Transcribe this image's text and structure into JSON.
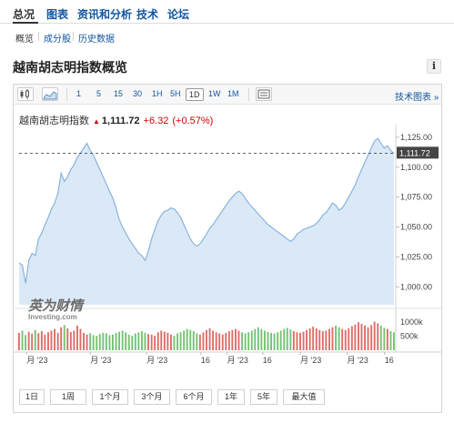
{
  "top_nav": {
    "items": [
      "总况",
      "图表",
      "资讯和分析",
      "技术",
      "论坛"
    ]
  },
  "sub_nav": {
    "items": [
      "概览",
      "成分股",
      "历史数据"
    ]
  },
  "page_title": "越南胡志明指数概览",
  "info_label": "i",
  "toolbar": {
    "intervals": [
      "1",
      "5",
      "15",
      "30",
      "1H",
      "5H",
      "1D",
      "1W",
      "1M"
    ],
    "active_interval": "1D",
    "tech_chart_link": "技术图表 »"
  },
  "quote": {
    "name": "越南胡志明指数",
    "price": "1,111.72",
    "change": "+6.32",
    "change_pct": "(+0.57%)",
    "colors": {
      "up": "#d40000"
    }
  },
  "watermark": {
    "cn": "英为财情",
    "en": "Investing.com"
  },
  "range_buttons": [
    "1日",
    "1周",
    "1个月",
    "3个月",
    "6个月",
    "1年",
    "5年",
    "最大值"
  ],
  "chart_data": {
    "type": "area",
    "y_ticks": [
      "1,125.00",
      "1,100.00",
      "1,075.00",
      "1,050.00",
      "1,025.00",
      "1,000.00"
    ],
    "y_tick_values": [
      1125,
      1100,
      1075,
      1050,
      1025,
      1000
    ],
    "ylim": [
      985,
      1131
    ],
    "last_value_label": "1,111.72",
    "last_value": 1111.72,
    "x_labels": [
      "月 '23",
      "月 '23",
      "月 '23",
      "16",
      "月 '23",
      "16",
      "月 '23",
      "月 '23",
      "16"
    ],
    "x_label_positions": [
      4,
      38,
      68,
      97,
      111,
      130,
      150,
      175,
      195
    ],
    "values": [
      1020,
      1018,
      1003,
      1022,
      1028,
      1026,
      1040,
      1045,
      1052,
      1058,
      1065,
      1070,
      1078,
      1095,
      1088,
      1092,
      1098,
      1102,
      1108,
      1112,
      1116,
      1120,
      1114,
      1110,
      1104,
      1098,
      1092,
      1086,
      1080,
      1074,
      1066,
      1056,
      1050,
      1045,
      1040,
      1036,
      1032,
      1028,
      1026,
      1022,
      1030,
      1040,
      1048,
      1055,
      1060,
      1063,
      1064,
      1066,
      1065,
      1062,
      1058,
      1052,
      1046,
      1040,
      1036,
      1034,
      1036,
      1040,
      1044,
      1049,
      1052,
      1056,
      1060,
      1064,
      1068,
      1072,
      1075,
      1078,
      1080,
      1078,
      1074,
      1070,
      1067,
      1064,
      1061,
      1058,
      1055,
      1052,
      1050,
      1048,
      1046,
      1044,
      1042,
      1040,
      1038,
      1040,
      1044,
      1046,
      1048,
      1049,
      1050,
      1051,
      1053,
      1056,
      1060,
      1062,
      1066,
      1070,
      1068,
      1064,
      1066,
      1070,
      1075,
      1080,
      1085,
      1092,
      1098,
      1104,
      1110,
      1116,
      1122,
      1124,
      1120,
      1116,
      1118,
      1114,
      1111.72
    ],
    "volume_ticks": [
      "1000k",
      "500k"
    ],
    "volume_tick_values": [
      1000,
      500
    ],
    "volume_max": 1300,
    "volumes": [
      620,
      700,
      540,
      660,
      590,
      720,
      610,
      680,
      560,
      640,
      700,
      760,
      620,
      820,
      900,
      780,
      650,
      700,
      880,
      760,
      620,
      560,
      600,
      540,
      520,
      580,
      620,
      600,
      540,
      560,
      620,
      660,
      700,
      640,
      560,
      520,
      600,
      640,
      680,
      620,
      580,
      560,
      520,
      640,
      700,
      660,
      620,
      560,
      520,
      600,
      640,
      700,
      760,
      720,
      680,
      600,
      560,
      640,
      720,
      780,
      700,
      640,
      600,
      560,
      620,
      680,
      720,
      760,
      700,
      640,
      600,
      640,
      700,
      760,
      820,
      760,
      700,
      660,
      620,
      600,
      640,
      700,
      760,
      800,
      740,
      680,
      640,
      620,
      660,
      720,
      780,
      840,
      780,
      720,
      680,
      700,
      760,
      820,
      880,
      820,
      760,
      720,
      780,
      860,
      920,
      1000,
      940,
      880,
      820,
      900,
      1020,
      960,
      880,
      800,
      760,
      680,
      640
    ],
    "colors": {
      "line": "#7fb0dc",
      "fill": "#dbe8f5",
      "vol_up": "#d9534f",
      "vol_down": "#5cb85c"
    }
  }
}
